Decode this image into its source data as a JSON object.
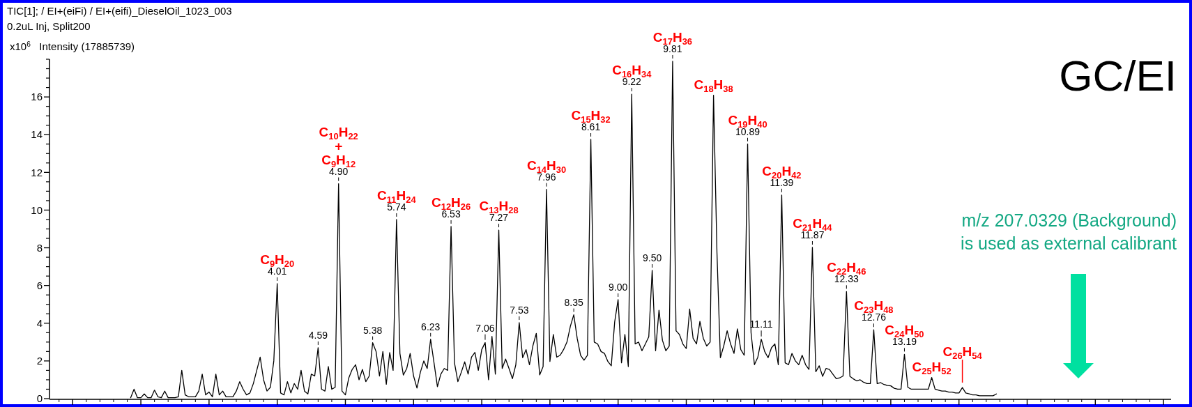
{
  "chart_data": {
    "type": "line",
    "title": "TIC[1]; / EI+(eiFi) / EI+(eifi)_DieselOil_1023_003",
    "subtitle": "0.2uL Inj, Split200",
    "ylabel": "x10$^{6}$   Intensity (17885739)",
    "color": "#000000",
    "categories": [
      null,
      null,
      null,
      null,
      null,
      null,
      null,
      null,
      null,
      null,
      null,
      null,
      null,
      null,
      null,
      null,
      null,
      null,
      null,
      null,
      null,
      null,
      null,
      null,
      null,
      null,
      null,
      null,
      null,
      null,
      null,
      null,
      null,
      null,
      null,
      null,
      null,
      null,
      null,
      null,
      null,
      null,
      null,
      null,
      null,
      null,
      null,
      null,
      null,
      null,
      null,
      null,
      null,
      null,
      null,
      null,
      null,
      null,
      null,
      null,
      null,
      null,
      null,
      null,
      null,
      null,
      null,
      null,
      null,
      null,
      null,
      null,
      null,
      null,
      null,
      null,
      null,
      null,
      null,
      null,
      null,
      null,
      null,
      null,
      null,
      null,
      null,
      null,
      null,
      null,
      null,
      null,
      null,
      null,
      null,
      null,
      null,
      null,
      null,
      null,
      null,
      null,
      null,
      null,
      null,
      null,
      null,
      null,
      null,
      null,
      null,
      null,
      null,
      null,
      null,
      null,
      null,
      null,
      null,
      null,
      null,
      null,
      null,
      null,
      null,
      null,
      null,
      null,
      null,
      null,
      null,
      null,
      null,
      null,
      null,
      null,
      null,
      null,
      null,
      null,
      null,
      null,
      null,
      null,
      null,
      null,
      null,
      null,
      null,
      null,
      null,
      null,
      null,
      null,
      null,
      null,
      null,
      null,
      null,
      null,
      null,
      null,
      null,
      null,
      null,
      null,
      null,
      null,
      null,
      null,
      null,
      null,
      null,
      null,
      null,
      null,
      null,
      null,
      null,
      null,
      null,
      null,
      null,
      null,
      null,
      null,
      null,
      null,
      null,
      null,
      null,
      null,
      null,
      null,
      null,
      null,
      null,
      null,
      null,
      null,
      null,
      null,
      null,
      null,
      null,
      null,
      null,
      null,
      null,
      null,
      null,
      null,
      null,
      null,
      null,
      null,
      null,
      null,
      null,
      null,
      null,
      null,
      null,
      null,
      null,
      null,
      null,
      null,
      null,
      null,
      null,
      null,
      null,
      null,
      null,
      null,
      null,
      null,
      null,
      null,
      null,
      null,
      null,
      null,
      null,
      null,
      null,
      null,
      null,
      null,
      null,
      null,
      null,
      null,
      null
    ],
    "values": [
      0.05,
      0.5,
      0.05,
      0.05,
      0.25,
      0.05,
      0.05,
      0.45,
      0.1,
      0.05,
      0.4,
      0.05,
      0.05,
      0.05,
      0.1,
      1.5,
      0.2,
      0.1,
      0.1,
      0.1,
      0.4,
      1.3,
      0.2,
      0.35,
      0.1,
      1.3,
      0.2,
      0.4,
      0.1,
      0.1,
      0.1,
      0.4,
      0.9,
      0.5,
      0.2,
      0.3,
      0.8,
      1.5,
      2.2,
      1.0,
      0.4,
      0.6,
      2.0,
      6.1,
      0.3,
      0.2,
      0.9,
      0.3,
      0.8,
      0.5,
      1.5,
      0.4,
      0.25,
      1.3,
      1.2,
      2.7,
      0.5,
      0.4,
      1.7,
      0.5,
      0.6,
      11.4,
      0.4,
      0.2,
      1.1,
      1.55,
      1.8,
      1.0,
      1.55,
      0.9,
      1.2,
      2.97,
      2.5,
      1.2,
      2.5,
      0.76,
      2.44,
      1.5,
      9.5,
      2.4,
      1.25,
      1.6,
      2.4,
      1.2,
      0.56,
      1.4,
      2.0,
      1.6,
      3.15,
      1.9,
      0.63,
      1.3,
      1.6,
      1.5,
      9.13,
      1.9,
      0.9,
      1.4,
      1.95,
      1.3,
      2.2,
      2.45,
      1.5,
      2.6,
      2.97,
      1.0,
      3.3,
      1.3,
      8.94,
      1.6,
      2.1,
      1.6,
      1.06,
      1.8,
      4.03,
      2.17,
      2.6,
      1.8,
      2.8,
      3.46,
      1.26,
      1.7,
      11.1,
      1.97,
      3.4,
      2.2,
      2.3,
      2.6,
      3.0,
      3.84,
      4.45,
      3.2,
      2.3,
      2.04,
      2.3,
      13.75,
      3.0,
      2.9,
      2.5,
      2.4,
      1.97,
      1.74,
      4.07,
      5.25,
      1.9,
      3.4,
      1.7,
      16.15,
      2.9,
      3.0,
      2.54,
      2.9,
      3.28,
      6.8,
      2.54,
      4.69,
      3.1,
      2.54,
      2.79,
      17.89,
      3.6,
      3.4,
      2.9,
      2.66,
      4.75,
      3.2,
      2.9,
      4.1,
      3.2,
      2.79,
      3.0,
      16.09,
      7.77,
      2.17,
      2.8,
      3.6,
      2.9,
      2.4,
      3.7,
      2.6,
      2.3,
      13.5,
      3.5,
      1.8,
      2.2,
      3.15,
      2.5,
      2.17,
      2.7,
      2.9,
      1.8,
      10.8,
      1.9,
      1.8,
      2.4,
      2.0,
      1.8,
      2.3,
      1.8,
      1.55,
      8.02,
      1.43,
      1.74,
      1.18,
      1.6,
      1.55,
      1.3,
      1.06,
      1.1,
      1.2,
      5.68,
      1.18,
      1.05,
      0.94,
      1.0,
      0.87,
      0.8,
      0.8,
      3.65,
      0.8,
      0.85,
      0.75,
      0.7,
      0.68,
      0.55,
      0.5,
      0.5,
      2.35,
      0.6,
      0.5,
      0.5,
      0.5,
      0.5,
      0.5,
      0.5,
      1.12,
      0.5,
      0.45,
      0.4,
      0.4,
      0.35,
      0.35,
      0.3,
      0.3,
      0.59,
      0.3,
      0.25,
      0.2,
      0.2,
      0.15,
      0.15,
      0.15,
      0.15,
      0.15,
      0.25
    ],
    "value_labels": [
      null,
      null,
      null,
      null,
      null,
      null,
      null,
      null,
      null,
      null,
      null,
      null,
      null,
      null,
      null,
      null,
      null,
      null,
      null,
      null,
      null,
      null,
      null,
      null,
      null,
      null,
      null,
      null,
      null,
      null,
      null,
      null,
      null,
      null,
      null,
      null,
      null,
      null,
      null,
      null,
      null,
      null,
      null,
      "C$_{9}$H$_{20}$\n4.01",
      null,
      null,
      null,
      null,
      null,
      null,
      null,
      null,
      null,
      null,
      null,
      null,
      null,
      null,
      null,
      null,
      null,
      "C$_{10}$H$_{22}$\n+\nC$_{9}$H$_{12}$\n4.90",
      null,
      null,
      null,
      null,
      null,
      null,
      null,
      null,
      null,
      null,
      null,
      null,
      null,
      null,
      null,
      null,
      "C$_{11}$H$_{24}$\n5.74",
      null,
      null,
      null,
      null,
      null,
      null,
      null,
      null,
      null,
      null,
      null,
      null,
      null,
      null,
      null,
      "C$_{12}$H$_{26}$\n6.53",
      null,
      null,
      null,
      null,
      null,
      null,
      null,
      null,
      null,
      null,
      null,
      null,
      null,
      "C$_{13}$H$_{28}$\n7.27",
      null,
      null,
      null,
      null,
      null,
      null,
      null,
      null,
      null,
      null,
      null,
      null,
      null,
      "C$_{14}$H$_{30}$\n7.96",
      null,
      null,
      null,
      null,
      null,
      null,
      null,
      null,
      null,
      null,
      null,
      null,
      "C$_{15}$H$_{32}$\n8.61",
      null,
      null,
      null,
      null,
      null,
      null,
      null,
      null,
      null,
      null,
      null,
      "C$_{16}$H$_{34}$\n9.22",
      null,
      null,
      null,
      null,
      null,
      null,
      null,
      null,
      null,
      null,
      null,
      "C$_{17}$H$_{36}$\n9.81",
      null,
      null,
      null,
      null,
      null,
      null,
      null,
      null,
      null,
      null,
      null,
      "C$_{18}$H$_{38}$",
      null,
      null,
      null,
      null,
      null,
      null,
      null,
      null,
      null,
      "C$_{19}$H$_{40}$\n10.89",
      null,
      null,
      null,
      null,
      null,
      null,
      null,
      null,
      null,
      "C$_{20}$H$_{42}$\n11.39",
      null,
      null,
      null,
      null,
      null,
      null,
      null,
      null,
      "C$_{21}$H$_{44}$\n11.87",
      null,
      null,
      null,
      null,
      null,
      null,
      null,
      null,
      null,
      "C$_{22}$H$_{46}$\n12.33",
      null,
      null,
      null,
      null,
      null,
      null,
      null,
      "C$_{23}$H$_{48}$\n12.76",
      null,
      null,
      null,
      null,
      null,
      null,
      null,
      null,
      "C$_{24}$H$_{50}$\n13.19",
      null,
      null,
      null,
      null,
      null,
      null,
      null,
      "C$_{25}$H$_{52}$",
      null,
      null,
      null,
      null,
      null,
      null,
      null,
      null,
      "C$_{26}$H$_{54}$",
      null,
      null,
      null,
      null,
      null,
      null,
      null,
      null,
      null,
      null
    ],
    "ylim": [
      0,
      18
    ],
    "yticks": [
      0,
      2,
      4,
      6,
      8,
      10,
      12,
      14,
      16
    ],
    "tick_labels": "y",
    "annotations": [
      {
        "text": "4.59",
        "y": 2.7
      },
      {
        "text": "5.38",
        "y": 2.97
      },
      {
        "text": "6.23",
        "y": 3.15
      },
      {
        "text": "7.06",
        "y": 2.97
      },
      {
        "text": "7.53",
        "y": 4.03
      },
      {
        "text": "8.35",
        "y": 4.45
      },
      {
        "text": "9.00",
        "y": 5.25
      },
      {
        "text": "9.50",
        "y": 6.8
      },
      {
        "text": "11.11",
        "y": 3.15
      },
      "GC/EI",
      "m/z 207.0329 (Background)\nis used as external calibrant"
    ]
  }
}
